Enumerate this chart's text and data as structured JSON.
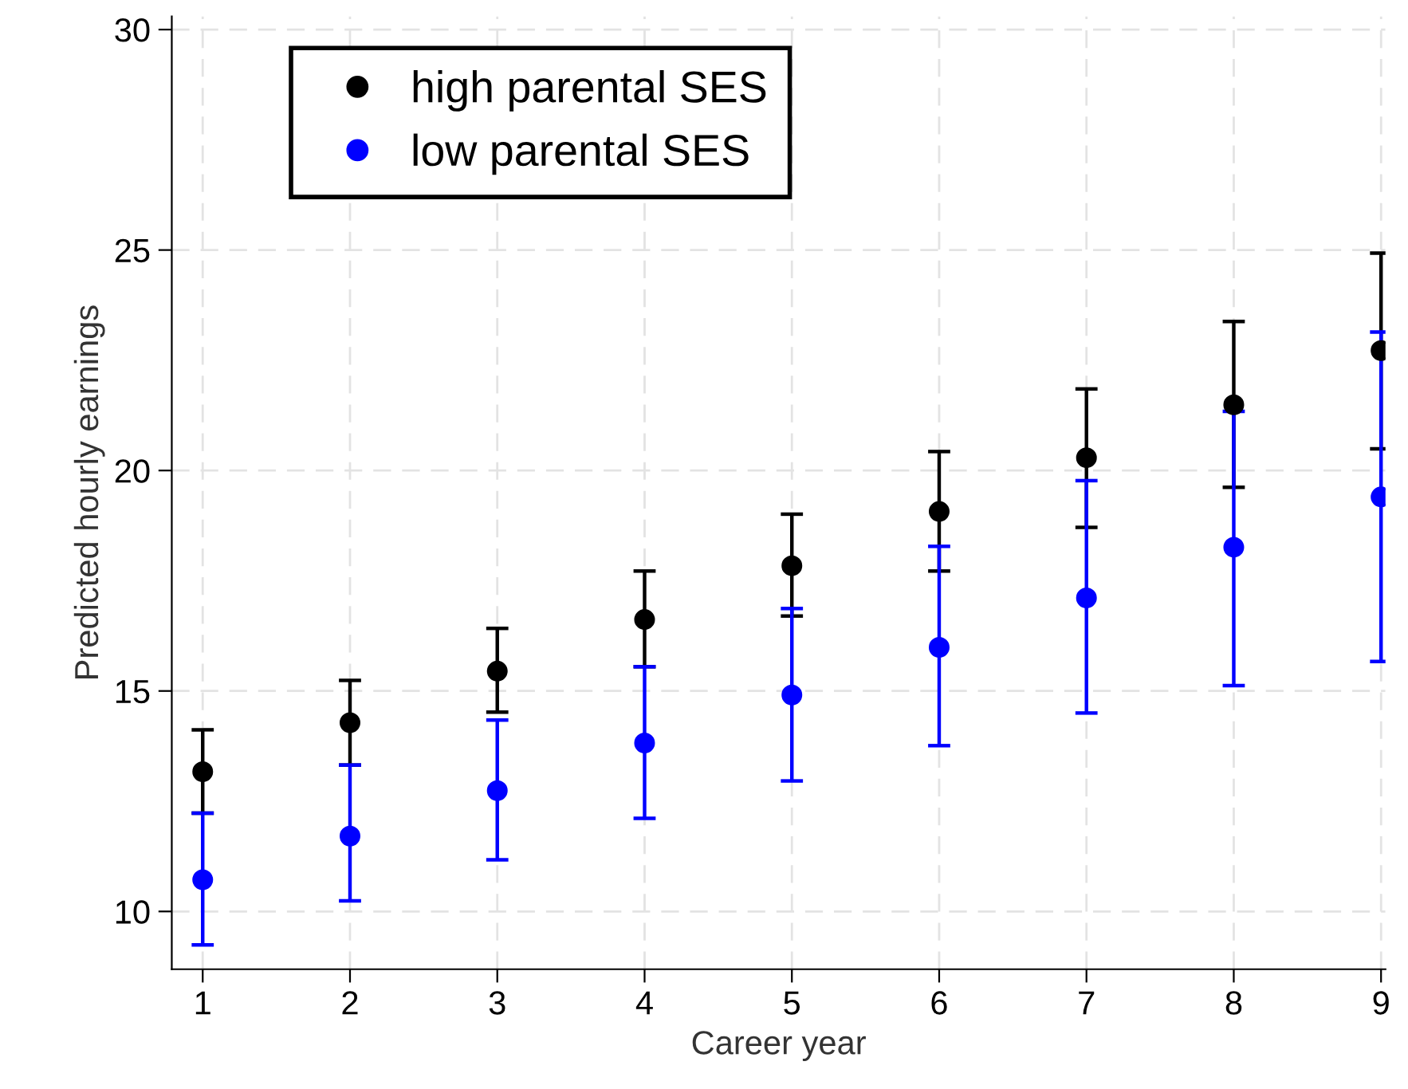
{
  "chart_data": {
    "type": "scatter",
    "xlabel": "Career year",
    "ylabel": "Predicted hourly earnings",
    "x": [
      1,
      2,
      3,
      4,
      5,
      6,
      7,
      8,
      9
    ],
    "series": [
      {
        "name": "high parental SES",
        "color": "#000000",
        "values": [
          13.17,
          14.28,
          15.45,
          16.62,
          17.84,
          19.07,
          20.29,
          21.49,
          22.72
        ],
        "errors": [
          [
            12.23,
            14.12
          ],
          [
            13.32,
            15.24
          ],
          [
            14.52,
            16.42
          ],
          [
            15.55,
            17.72
          ],
          [
            16.7,
            19.01
          ],
          [
            17.72,
            20.43
          ],
          [
            18.71,
            21.85
          ],
          [
            19.62,
            23.38
          ],
          [
            20.49,
            24.93
          ]
        ]
      },
      {
        "name": "low parental SES",
        "color": "#0000ff",
        "values": [
          10.72,
          11.71,
          12.74,
          13.82,
          14.91,
          15.99,
          17.11,
          18.26,
          19.4
        ],
        "errors": [
          [
            9.24,
            12.23
          ],
          [
            10.24,
            13.32
          ],
          [
            11.17,
            14.34
          ],
          [
            12.11,
            15.55
          ],
          [
            12.96,
            16.87
          ],
          [
            13.76,
            18.28
          ],
          [
            14.5,
            19.77
          ],
          [
            15.12,
            21.34
          ],
          [
            15.67,
            23.14
          ]
        ]
      }
    ],
    "xlim": [
      0.79,
      9.03
    ],
    "xticks": [
      1,
      2,
      3,
      4,
      5,
      6,
      7,
      8,
      9
    ],
    "ylim": [
      8.69,
      30.3
    ],
    "yticks": [
      10,
      15,
      20,
      25,
      30
    ],
    "grid": true,
    "legend": "top left",
    "marker": "circle"
  }
}
